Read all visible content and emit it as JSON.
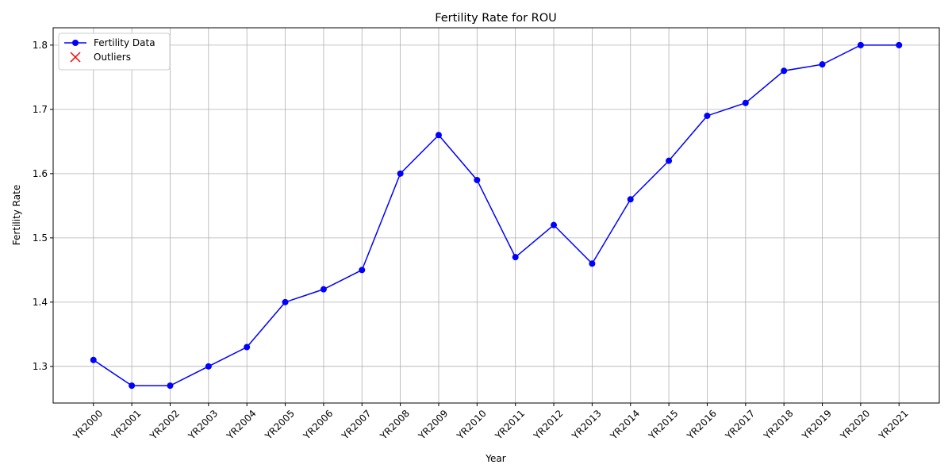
{
  "chart_data": {
    "type": "line",
    "title": "Fertility Rate for ROU",
    "xlabel": "Year",
    "ylabel": "Fertility Rate",
    "categories": [
      "YR2000",
      "YR2001",
      "YR2002",
      "YR2003",
      "YR2004",
      "YR2005",
      "YR2006",
      "YR2007",
      "YR2008",
      "YR2009",
      "YR2010",
      "YR2011",
      "YR2012",
      "YR2013",
      "YR2014",
      "YR2015",
      "YR2016",
      "YR2017",
      "YR2018",
      "YR2019",
      "YR2020",
      "YR2021"
    ],
    "series": [
      {
        "name": "Fertility Data",
        "color": "#0000ff",
        "marker": "o",
        "values": [
          1.31,
          1.27,
          1.27,
          1.3,
          1.33,
          1.4,
          1.42,
          1.45,
          1.6,
          1.66,
          1.59,
          1.47,
          1.52,
          1.46,
          1.56,
          1.62,
          1.69,
          1.71,
          1.76,
          1.77,
          1.8,
          1.8
        ]
      },
      {
        "name": "Outliers",
        "color": "#ff0000",
        "marker": "x",
        "values": [
          null,
          null,
          null,
          null,
          null,
          null,
          null,
          null,
          null,
          null,
          null,
          null,
          null,
          null,
          null,
          null,
          null,
          null,
          null,
          null,
          null,
          null
        ]
      }
    ],
    "ylim": [
      1.243,
      1.827
    ],
    "yticks": [
      1.3,
      1.4,
      1.5,
      1.6,
      1.7,
      1.8
    ],
    "grid": true,
    "legend": "upper left"
  }
}
